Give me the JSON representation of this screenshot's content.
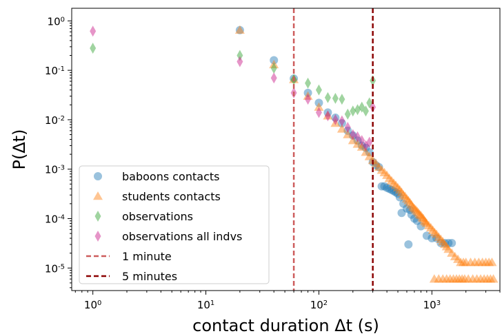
{
  "chart_data": {
    "type": "scatter",
    "xscale": "log",
    "yscale": "log",
    "xlim": [
      0.65,
      4000
    ],
    "ylim": [
      3.5e-06,
      1.8
    ],
    "xlabel": "contact duration Δt (s)",
    "ylabel": "P(Δt)",
    "x_ticks": [
      {
        "value": 1,
        "base": "10",
        "exp": "0"
      },
      {
        "value": 10,
        "base": "10",
        "exp": "1"
      },
      {
        "value": 100,
        "base": "10",
        "exp": "2"
      },
      {
        "value": 1000,
        "base": "10",
        "exp": "3"
      }
    ],
    "y_ticks": [
      {
        "value": 1,
        "base": "10",
        "exp": "0"
      },
      {
        "value": 0.1,
        "base": "10",
        "exp": "-1"
      },
      {
        "value": 0.01,
        "base": "10",
        "exp": "-2"
      },
      {
        "value": 0.001,
        "base": "10",
        "exp": "-3"
      },
      {
        "value": 0.0001,
        "base": "10",
        "exp": "-4"
      },
      {
        "value": 1e-05,
        "base": "10",
        "exp": "-5"
      }
    ],
    "legend_position": "lower-left",
    "series": [
      {
        "name": "baboons contacts",
        "marker": "circle",
        "color": "#1f77b4",
        "points": [
          [
            20,
            0.65
          ],
          [
            40,
            0.16
          ],
          [
            60,
            0.068
          ],
          [
            80,
            0.035
          ],
          [
            100,
            0.022
          ],
          [
            120,
            0.014
          ],
          [
            140,
            0.011
          ],
          [
            160,
            0.0085
          ],
          [
            180,
            0.006
          ],
          [
            200,
            0.0048
          ],
          [
            220,
            0.0038
          ],
          [
            240,
            0.003
          ],
          [
            260,
            0.0027
          ],
          [
            280,
            0.0022
          ],
          [
            300,
            0.0014
          ],
          [
            320,
            0.0012
          ],
          [
            340,
            0.0011
          ],
          [
            360,
            0.00045
          ],
          [
            380,
            0.00045
          ],
          [
            400,
            0.00042
          ],
          [
            420,
            0.0004
          ],
          [
            440,
            0.00038
          ],
          [
            460,
            0.00036
          ],
          [
            480,
            0.00034
          ],
          [
            500,
            0.00032
          ],
          [
            520,
            0.00027
          ],
          [
            540,
            0.00013
          ],
          [
            560,
            0.0002
          ],
          [
            600,
            0.00016
          ],
          [
            620,
            3e-05
          ],
          [
            640,
            0.00015
          ],
          [
            660,
            0.00012
          ],
          [
            700,
            0.0001
          ],
          [
            740,
            9e-05
          ],
          [
            800,
            7e-05
          ],
          [
            900,
            4.5e-05
          ],
          [
            1000,
            4e-05
          ],
          [
            1100,
            4e-05
          ],
          [
            1200,
            3.2e-05
          ],
          [
            1300,
            3.2e-05
          ],
          [
            1400,
            3.2e-05
          ],
          [
            1500,
            3.2e-05
          ]
        ]
      },
      {
        "name": "students contacts",
        "marker": "triangle",
        "color": "#ff7f0e",
        "points": [
          [
            20,
            0.65
          ],
          [
            40,
            0.13
          ],
          [
            60,
            0.065
          ],
          [
            80,
            0.03
          ],
          [
            100,
            0.018
          ],
          [
            120,
            0.012
          ],
          [
            140,
            0.0085
          ],
          [
            160,
            0.0065
          ],
          [
            180,
            0.005
          ],
          [
            200,
            0.0038
          ],
          [
            220,
            0.0032
          ],
          [
            240,
            0.0028
          ],
          [
            260,
            0.0022
          ],
          [
            280,
            0.0018
          ],
          [
            300,
            0.0015
          ],
          [
            320,
            0.0013
          ],
          [
            340,
            0.0011
          ],
          [
            360,
            0.00095
          ],
          [
            380,
            0.00085
          ],
          [
            400,
            0.00075
          ],
          [
            420,
            0.00065
          ],
          [
            440,
            0.00058
          ],
          [
            460,
            0.00052
          ],
          [
            480,
            0.00047
          ],
          [
            500,
            0.00042
          ],
          [
            520,
            0.00038
          ],
          [
            540,
            0.00034
          ],
          [
            560,
            0.0003
          ],
          [
            580,
            0.00028
          ],
          [
            600,
            0.00025
          ],
          [
            620,
            0.00023
          ],
          [
            640,
            0.00021
          ],
          [
            660,
            0.00019
          ],
          [
            680,
            0.00017
          ],
          [
            700,
            0.00016
          ],
          [
            720,
            0.00015
          ],
          [
            740,
            0.00014
          ],
          [
            760,
            0.00013
          ],
          [
            780,
            0.00012
          ],
          [
            800,
            0.000115
          ],
          [
            820,
            0.000105
          ],
          [
            840,
            0.0001
          ],
          [
            860,
            9e-05
          ],
          [
            880,
            8.5e-05
          ],
          [
            900,
            8e-05
          ],
          [
            940,
            7.2e-05
          ],
          [
            980,
            6.5e-05
          ],
          [
            1020,
            5.8e-05
          ],
          [
            1060,
            5.2e-05
          ],
          [
            1100,
            4.8e-05
          ],
          [
            1150,
            4.2e-05
          ],
          [
            1200,
            3.8e-05
          ],
          [
            1250,
            3.4e-05
          ],
          [
            1300,
            3e-05
          ],
          [
            1350,
            2.7e-05
          ],
          [
            1400,
            2.4e-05
          ],
          [
            1500,
            2e-05
          ],
          [
            1600,
            1.7e-05
          ],
          [
            1700,
            1.5e-05
          ],
          [
            1800,
            1.3e-05
          ],
          [
            1900,
            1.3e-05
          ],
          [
            2000,
            1.3e-05
          ],
          [
            2200,
            1.3e-05
          ],
          [
            2400,
            1.3e-05
          ],
          [
            2600,
            1.3e-05
          ],
          [
            2800,
            1.3e-05
          ],
          [
            3000,
            1.3e-05
          ],
          [
            3200,
            1.3e-05
          ],
          [
            3400,
            1.3e-05
          ],
          [
            1050,
            6e-06
          ],
          [
            1150,
            6e-06
          ],
          [
            1250,
            6e-06
          ],
          [
            1350,
            6e-06
          ],
          [
            1450,
            6e-06
          ],
          [
            1550,
            6e-06
          ],
          [
            1650,
            6e-06
          ],
          [
            1750,
            6e-06
          ],
          [
            1850,
            6e-06
          ],
          [
            1950,
            6e-06
          ],
          [
            2100,
            6e-06
          ],
          [
            2300,
            6e-06
          ],
          [
            2500,
            6e-06
          ],
          [
            2700,
            6e-06
          ],
          [
            2900,
            6e-06
          ],
          [
            3100,
            6e-06
          ],
          [
            3300,
            6e-06
          ],
          [
            3500,
            6e-06
          ]
        ]
      },
      {
        "name": "observations",
        "marker": "diamond",
        "color": "#2ca02c",
        "points": [
          [
            1,
            0.28
          ],
          [
            20,
            0.2
          ],
          [
            40,
            0.11
          ],
          [
            60,
            0.065
          ],
          [
            80,
            0.055
          ],
          [
            100,
            0.04
          ],
          [
            120,
            0.028
          ],
          [
            140,
            0.027
          ],
          [
            160,
            0.026
          ],
          [
            180,
            0.013
          ],
          [
            200,
            0.015
          ],
          [
            220,
            0.016
          ],
          [
            240,
            0.018
          ],
          [
            260,
            0.015
          ],
          [
            280,
            0.022
          ],
          [
            300,
            0.062
          ]
        ]
      },
      {
        "name": "observations all indvs",
        "marker": "diamond",
        "color": "#c71585",
        "points": [
          [
            1,
            0.62
          ],
          [
            20,
            0.15
          ],
          [
            40,
            0.07
          ],
          [
            60,
            0.035
          ],
          [
            80,
            0.026
          ],
          [
            100,
            0.014
          ],
          [
            120,
            0.012
          ],
          [
            140,
            0.01
          ],
          [
            160,
            0.0095
          ],
          [
            180,
            0.007
          ],
          [
            200,
            0.005
          ],
          [
            220,
            0.0045
          ],
          [
            240,
            0.0038
          ],
          [
            260,
            0.003
          ],
          [
            280,
            0.0035
          ],
          [
            300,
            0.018
          ]
        ]
      }
    ],
    "vlines": [
      {
        "name": "1 minute",
        "x": 60,
        "color": "#cd5c5c",
        "style": "dashed"
      },
      {
        "name": "5 minutes",
        "x": 300,
        "color": "#8b0000",
        "style": "dashed"
      }
    ]
  }
}
